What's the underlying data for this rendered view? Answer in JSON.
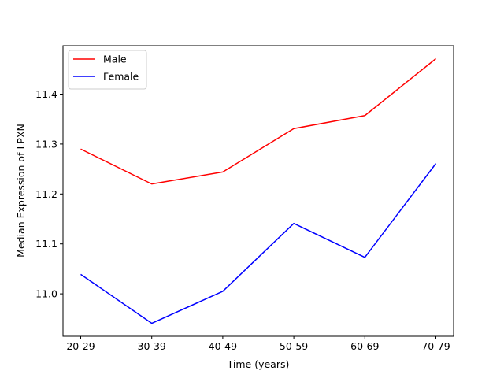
{
  "chart_data": {
    "type": "line",
    "categories": [
      "20-29",
      "30-39",
      "40-49",
      "50-59",
      "60-69",
      "70-79"
    ],
    "series": [
      {
        "name": "Male",
        "color": "#ff0000",
        "values": [
          11.29,
          11.22,
          11.244,
          11.331,
          11.357,
          11.471
        ]
      },
      {
        "name": "Female",
        "color": "#0000ff",
        "values": [
          11.039,
          10.941,
          11.005,
          11.141,
          11.073,
          11.261
        ]
      }
    ],
    "xlabel": "Time (years)",
    "ylabel": "Median Expression of LPXN",
    "ylim": [
      10.915,
      11.497
    ],
    "yticks": [
      11.0,
      11.1,
      11.2,
      11.3,
      11.4
    ],
    "ytick_labels": [
      "11.0",
      "11.1",
      "11.2",
      "11.3",
      "11.4"
    ],
    "legend": "top-left",
    "grid": false
  }
}
